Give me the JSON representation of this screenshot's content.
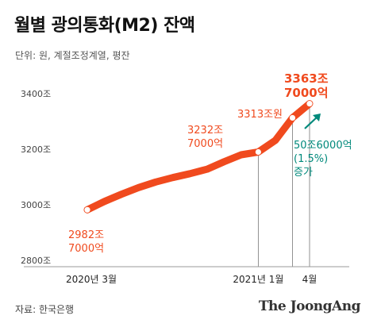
{
  "title": "월별 광의통화(M2) 잔액",
  "unit_note": "단위: 원, 계절조정계열, 평잔",
  "source": "자료: 한국은행",
  "brand": "The JoongAng",
  "colors": {
    "line": "#f04a1e",
    "accent": "#00897b",
    "axis": "#999999",
    "text": "#333333"
  },
  "chart_data": {
    "type": "line",
    "title": "월별 광의통화(M2) 잔액",
    "xlabel": "",
    "ylabel": "",
    "ylim": [
      2780,
      3400
    ],
    "x": [
      "2020-03",
      "2020-04",
      "2020-05",
      "2020-06",
      "2020-07",
      "2020-08",
      "2020-09",
      "2020-10",
      "2020-11",
      "2020-12",
      "2021-01",
      "2021-02",
      "2021-03",
      "2021-04"
    ],
    "series": [
      {
        "values": [
          2982,
          3012,
          3038,
          3062,
          3082,
          3098,
          3112,
          3128,
          3155,
          3180,
          3190,
          3232,
          3313,
          3364
        ]
      }
    ],
    "x_ticks": [
      {
        "x": "2020-03",
        "label": "2020년 3월"
      },
      {
        "x": "2021-01",
        "label": "2021년 1월"
      },
      {
        "x": "2021-04",
        "label": "4월"
      }
    ],
    "y_ticks": [
      {
        "value": 2800,
        "label": "2800조"
      },
      {
        "value": 3000,
        "label": "3000조"
      },
      {
        "value": 3200,
        "label": "3200조"
      },
      {
        "value": 3400,
        "label": "3400조"
      }
    ],
    "grid": false,
    "annotations": {
      "start": [
        "2982조",
        "7000억"
      ],
      "jan": [
        "3232조",
        "7000억"
      ],
      "mar": "3313조원",
      "apr": [
        "3363조",
        "7000억"
      ],
      "change": [
        "50조6000억",
        "(1.5%)",
        "증가"
      ]
    }
  }
}
